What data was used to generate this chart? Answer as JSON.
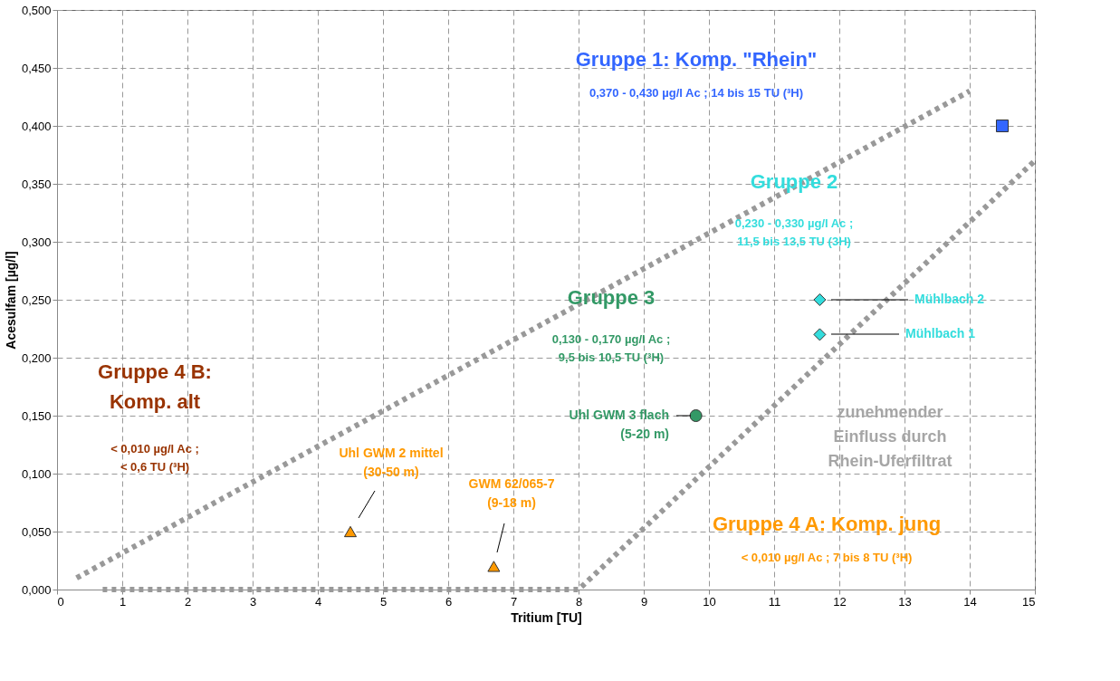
{
  "chart_data": {
    "type": "scatter",
    "xlabel": "Tritium [TU]",
    "ylabel": "Acesulfam [µg/l]",
    "xlim": [
      0,
      15
    ],
    "xticks": [
      0,
      1,
      2,
      3,
      4,
      5,
      6,
      7,
      8,
      9,
      10,
      11,
      12,
      13,
      14,
      15
    ],
    "grid": true,
    "ylim": [
      0,
      0.5
    ],
    "yticks": [
      {
        "value": 0,
        "label": "0,000"
      },
      {
        "value": 0.05,
        "label": "0,050"
      },
      {
        "value": 0.1,
        "label": "0,100"
      },
      {
        "value": 0.15,
        "label": "0,150"
      },
      {
        "value": 0.2,
        "label": "0,200"
      },
      {
        "value": 0.25,
        "label": "0,250"
      },
      {
        "value": 0.3,
        "label": "0,300"
      },
      {
        "value": 0.35,
        "label": "0,350"
      },
      {
        "value": 0.4,
        "label": "0,400"
      },
      {
        "value": 0.45,
        "label": "0,450"
      },
      {
        "value": 0.5,
        "label": "0,500"
      }
    ],
    "series": [
      {
        "type": "line",
        "color": "#999999",
        "line_style": "dotted",
        "marker": "none",
        "x": [
          0.3,
          14
        ],
        "values": [
          0.01,
          0.43
        ]
      },
      {
        "type": "line",
        "color": "#999999",
        "line_style": "dotted",
        "marker": "none",
        "x": [
          0.7,
          8,
          15
        ],
        "values": [
          0,
          0,
          0.37
        ]
      },
      {
        "color": "#3366ff",
        "marker": "square",
        "x": [
          14.5
        ],
        "values": [
          0.4
        ]
      },
      {
        "color": "#33dddd",
        "marker": "diamond",
        "x": [
          11.7,
          11.7
        ],
        "values": [
          0.25,
          0.22
        ]
      },
      {
        "color": "#339966",
        "marker": "circle",
        "x": [
          9.8
        ],
        "values": [
          0.15
        ]
      },
      {
        "color": "#ff9900",
        "marker": "triangle",
        "x": [
          4.5,
          6.7
        ],
        "values": [
          0.05,
          0.02
        ]
      }
    ],
    "annotations": [
      "Gruppe 1: Komp. \"Rhein\"",
      "0,370 - 0,430 µg/l Ac ;  14 bis 15 TU (³H)",
      "Gruppe 2",
      "0,230 - 0,330 µg/l Ac ;\n11,5 bis 13,5 TU (3H)",
      "Gruppe 3",
      "0,130 - 0,170 µg/l Ac ;\n9,5 bis 10,5 TU (³H)",
      "Gruppe 4 B:\nKomp. alt",
      "< 0,010 µg/l Ac ;\n< 0,6 TU (³H)",
      "Gruppe 4 A: Komp. jung",
      "< 0,010 µg/l Ac ;  7 bis 8 TU (³H)",
      "zunehmender\nEinfluss durch\nRhein-Uferfiltrat",
      "Mühlbach 2",
      "Mühlbach 1",
      "Uhl GWM 3 flach\n(5-20 m)",
      "Uhl GWM 2 mittel\n(30-50 m)",
      "GWM 62/065-7\n(9-18 m)"
    ]
  }
}
